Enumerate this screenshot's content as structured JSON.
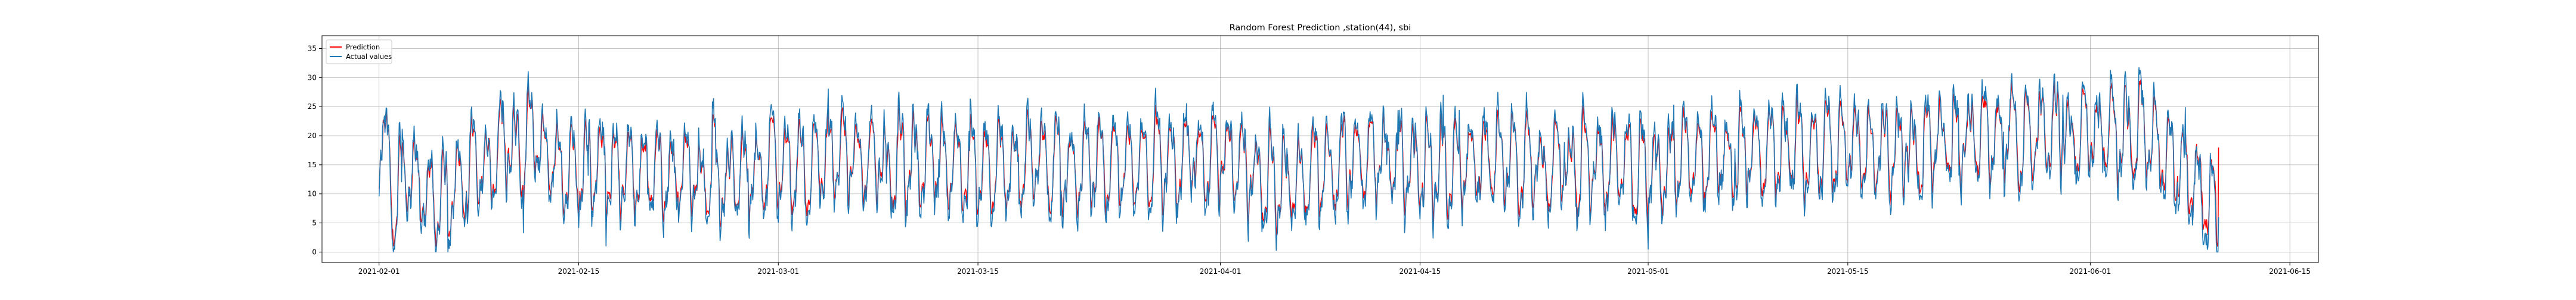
{
  "chart_data": {
    "type": "line",
    "title": "Random Forest Prediction ,station(44), sbi",
    "xlabel": "",
    "ylabel": "",
    "x_range": [
      "2021-01-28",
      "2021-06-17"
    ],
    "data_range": [
      "2021-02-01",
      "2021-06-10"
    ],
    "ylim": [
      -1.8,
      37.2
    ],
    "y_ticks": [
      0,
      5,
      10,
      15,
      20,
      25,
      30,
      35
    ],
    "x_ticks": [
      "2021-02-01",
      "2021-02-15",
      "2021-03-01",
      "2021-03-15",
      "2021-04-01",
      "2021-04-15",
      "2021-05-01",
      "2021-05-15",
      "2021-06-01",
      "2021-06-15"
    ],
    "grid": true,
    "legend_position": "upper-left",
    "sampling": "hourly",
    "series": [
      {
        "name": "Prediction",
        "color": "#ff0000",
        "anchors": [
          {
            "t": "2021-02-01T00:00",
            "v": 16
          },
          {
            "t": "2021-02-01T06:00",
            "v": 22
          },
          {
            "t": "2021-02-02T00:00",
            "v": 10
          },
          {
            "t": "2021-02-03T00:00",
            "v": 14
          },
          {
            "t": "2021-02-05T00:00",
            "v": 9
          },
          {
            "t": "2021-02-08T00:00",
            "v": 15
          },
          {
            "t": "2021-02-10T00:00",
            "v": 19
          },
          {
            "t": "2021-02-12T00:00",
            "v": 20
          },
          {
            "t": "2021-02-14T00:00",
            "v": 14
          },
          {
            "t": "2021-02-16T00:00",
            "v": 15
          },
          {
            "t": "2021-02-20T00:00",
            "v": 14
          },
          {
            "t": "2021-02-25T00:00",
            "v": 13
          },
          {
            "t": "2021-03-01T00:00",
            "v": 15
          },
          {
            "t": "2021-03-06T00:00",
            "v": 16
          },
          {
            "t": "2021-03-10T00:00",
            "v": 16
          },
          {
            "t": "2021-03-15T00:00",
            "v": 15
          },
          {
            "t": "2021-03-20T00:00",
            "v": 15
          },
          {
            "t": "2021-03-25T00:00",
            "v": 15
          },
          {
            "t": "2021-04-01T00:00",
            "v": 16
          },
          {
            "t": "2021-04-05T00:00",
            "v": 12
          },
          {
            "t": "2021-04-10T00:00",
            "v": 16
          },
          {
            "t": "2021-04-15T00:00",
            "v": 15
          },
          {
            "t": "2021-04-20T00:00",
            "v": 16
          },
          {
            "t": "2021-04-25T00:00",
            "v": 15
          },
          {
            "t": "2021-05-01T00:00",
            "v": 15
          },
          {
            "t": "2021-05-05T00:00",
            "v": 16
          },
          {
            "t": "2021-05-10T00:00",
            "v": 18
          },
          {
            "t": "2021-05-15T00:00",
            "v": 18
          },
          {
            "t": "2021-05-20T00:00",
            "v": 19
          },
          {
            "t": "2021-05-25T00:00",
            "v": 20
          },
          {
            "t": "2021-06-01T00:00",
            "v": 21
          },
          {
            "t": "2021-06-05T00:00",
            "v": 20
          },
          {
            "t": "2021-06-10T00:00",
            "v": 18
          }
        ]
      },
      {
        "name": "Actual values",
        "color": "#1f77b4",
        "anchors": [
          {
            "t": "2021-02-01T00:00",
            "v": 15
          },
          {
            "t": "2021-02-01T06:00",
            "v": 25
          },
          {
            "t": "2021-02-02T00:00",
            "v": 9
          },
          {
            "t": "2021-02-03T00:00",
            "v": 14
          },
          {
            "t": "2021-02-05T00:00",
            "v": 8
          },
          {
            "t": "2021-02-08T00:00",
            "v": 15
          },
          {
            "t": "2021-02-10T00:00",
            "v": 19
          },
          {
            "t": "2021-02-12T00:00",
            "v": 20
          },
          {
            "t": "2021-02-14T00:00",
            "v": 14
          },
          {
            "t": "2021-02-16T00:00",
            "v": 15
          },
          {
            "t": "2021-02-20T00:00",
            "v": 14
          },
          {
            "t": "2021-02-25T00:00",
            "v": 13
          },
          {
            "t": "2021-03-01T00:00",
            "v": 15
          },
          {
            "t": "2021-03-06T00:00",
            "v": 16
          },
          {
            "t": "2021-03-10T00:00",
            "v": 16
          },
          {
            "t": "2021-03-15T00:00",
            "v": 15
          },
          {
            "t": "2021-03-20T00:00",
            "v": 15
          },
          {
            "t": "2021-03-25T00:00",
            "v": 15
          },
          {
            "t": "2021-04-01T00:00",
            "v": 16
          },
          {
            "t": "2021-04-05T00:00",
            "v": 12
          },
          {
            "t": "2021-04-10T00:00",
            "v": 16
          },
          {
            "t": "2021-04-15T00:00",
            "v": 15
          },
          {
            "t": "2021-04-20T00:00",
            "v": 16
          },
          {
            "t": "2021-04-25T00:00",
            "v": 15
          },
          {
            "t": "2021-05-01T00:00",
            "v": 15
          },
          {
            "t": "2021-05-05T00:00",
            "v": 16
          },
          {
            "t": "2021-05-10T00:00",
            "v": 18
          },
          {
            "t": "2021-05-15T00:00",
            "v": 18
          },
          {
            "t": "2021-05-20T00:00",
            "v": 19
          },
          {
            "t": "2021-05-25T00:00",
            "v": 20
          },
          {
            "t": "2021-06-01T00:00",
            "v": 21
          },
          {
            "t": "2021-06-05T00:00",
            "v": 20
          },
          {
            "t": "2021-06-10T00:00",
            "v": 6
          }
        ]
      }
    ]
  }
}
